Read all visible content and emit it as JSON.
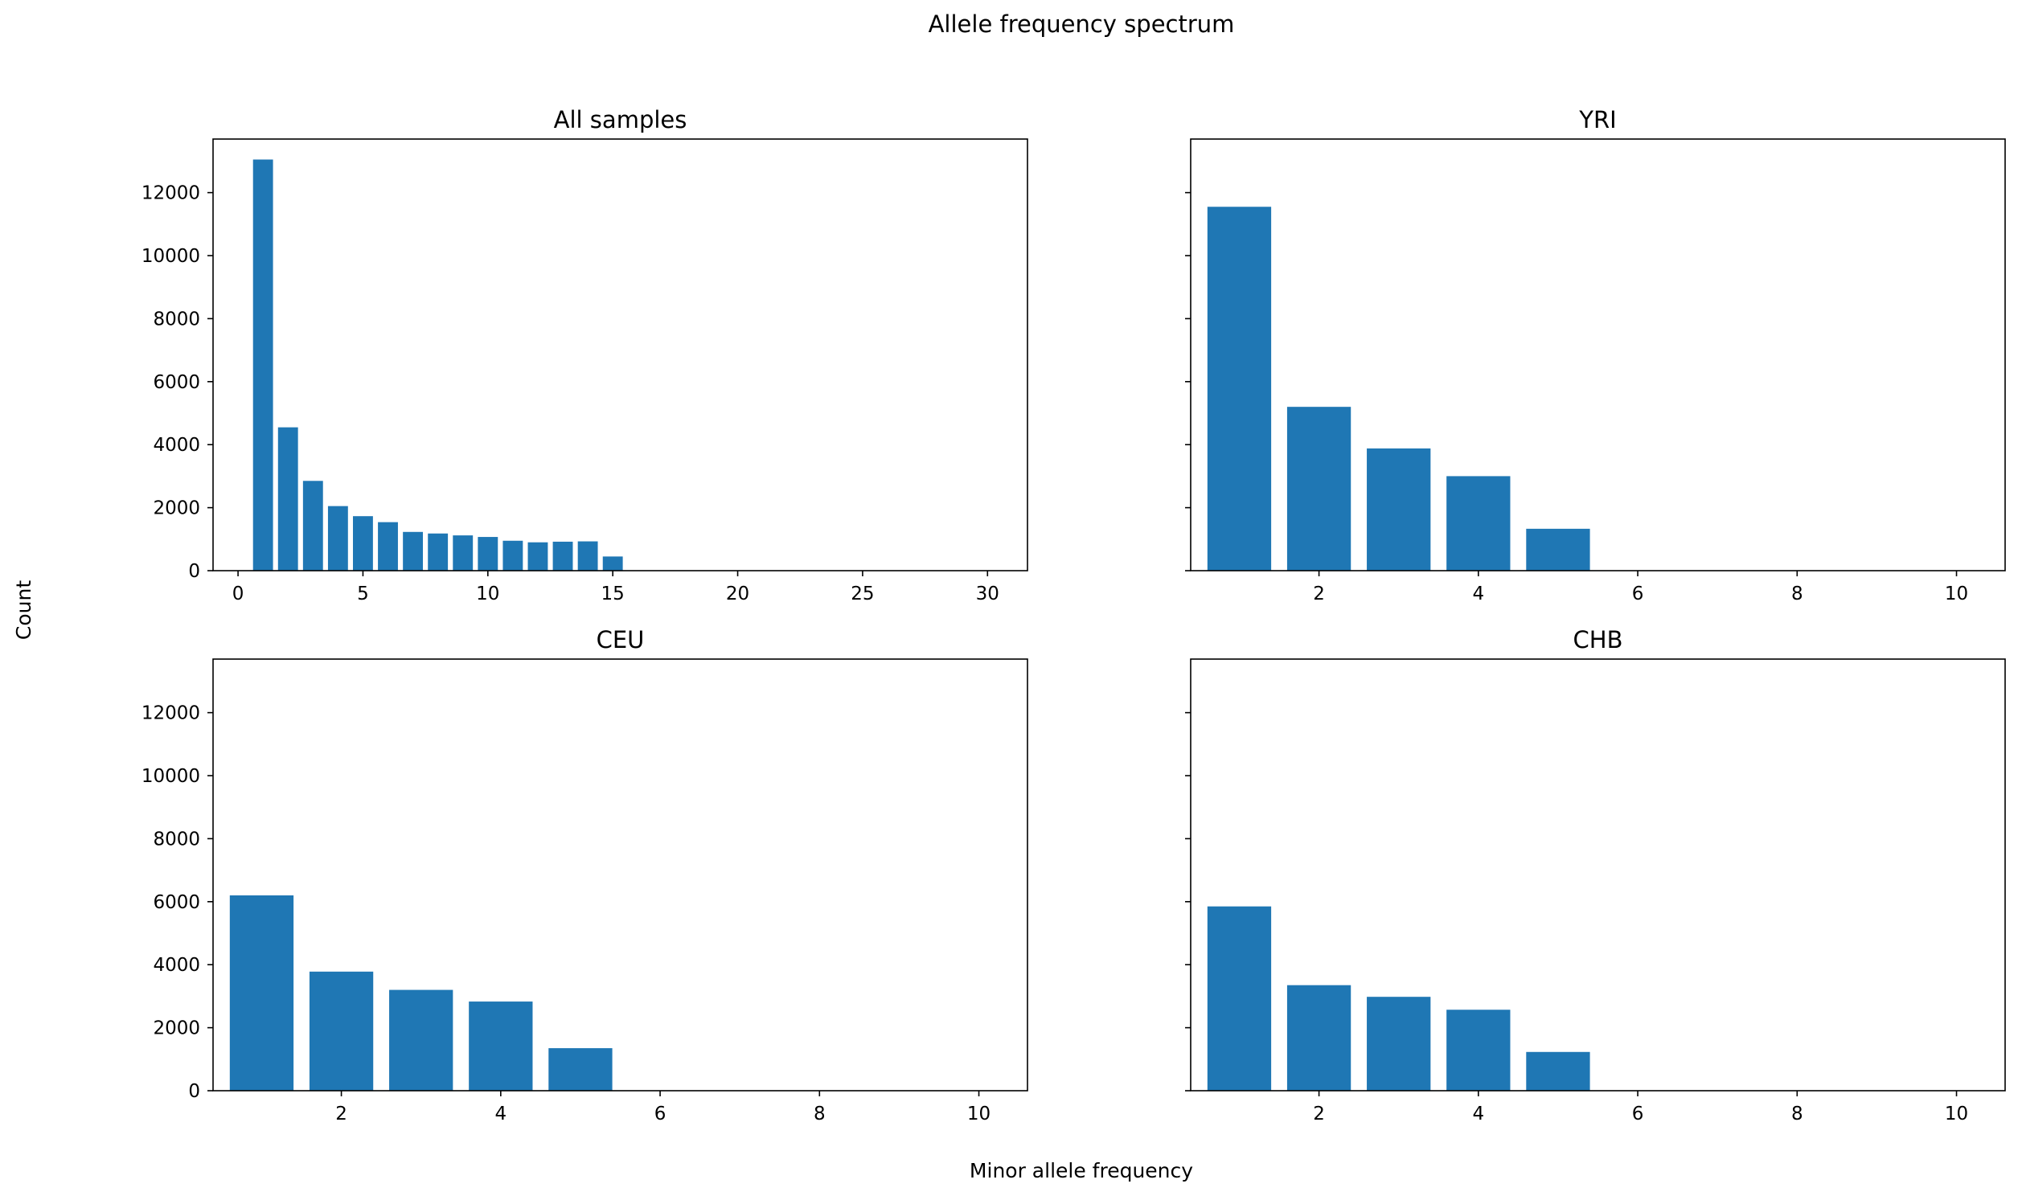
{
  "title": "Allele frequency spectrum",
  "xlabel": "Minor allele frequency",
  "ylabel": "Count",
  "colors": {
    "bar": "#1f77b4",
    "axis": "#000000",
    "background": "#ffffff"
  },
  "chart_data": [
    {
      "type": "bar",
      "title": "All samples",
      "x": [
        1,
        2,
        3,
        4,
        5,
        6,
        7,
        8,
        9,
        10,
        11,
        12,
        13,
        14,
        15
      ],
      "values": [
        13050,
        4550,
        2850,
        2050,
        1730,
        1540,
        1230,
        1180,
        1120,
        1070,
        950,
        900,
        920,
        930,
        450
      ],
      "bar_width": 0.8,
      "xlim": [
        -1,
        31.6
      ],
      "ylim": [
        0,
        13700
      ],
      "xticks": [
        0,
        5,
        10,
        15,
        20,
        25,
        30
      ],
      "yticks": [
        0,
        2000,
        4000,
        6000,
        8000,
        10000,
        12000
      ],
      "show_ytick_labels": true,
      "grid": false
    },
    {
      "type": "bar",
      "title": "YRI",
      "x": [
        1,
        2,
        3,
        4,
        5
      ],
      "values": [
        11550,
        5200,
        3880,
        3000,
        1330
      ],
      "bar_width": 0.8,
      "xlim": [
        0.39,
        10.61
      ],
      "ylim": [
        0,
        13700
      ],
      "xticks": [
        2,
        4,
        6,
        8,
        10
      ],
      "yticks": [
        0,
        2000,
        4000,
        6000,
        8000,
        10000,
        12000
      ],
      "show_ytick_labels": false,
      "grid": false
    },
    {
      "type": "bar",
      "title": "CEU",
      "x": [
        1,
        2,
        3,
        4,
        5
      ],
      "values": [
        6200,
        3780,
        3200,
        2830,
        1350
      ],
      "bar_width": 0.8,
      "xlim": [
        0.39,
        10.61
      ],
      "ylim": [
        0,
        13700
      ],
      "xticks": [
        2,
        4,
        6,
        8,
        10
      ],
      "yticks": [
        0,
        2000,
        4000,
        6000,
        8000,
        10000,
        12000
      ],
      "show_ytick_labels": true,
      "grid": false
    },
    {
      "type": "bar",
      "title": "CHB",
      "x": [
        1,
        2,
        3,
        4,
        5
      ],
      "values": [
        5850,
        3350,
        2980,
        2570,
        1230
      ],
      "bar_width": 0.8,
      "xlim": [
        0.39,
        10.61
      ],
      "ylim": [
        0,
        13700
      ],
      "xticks": [
        2,
        4,
        6,
        8,
        10
      ],
      "yticks": [
        0,
        2000,
        4000,
        6000,
        8000,
        10000,
        12000
      ],
      "show_ytick_labels": false,
      "grid": false
    }
  ]
}
